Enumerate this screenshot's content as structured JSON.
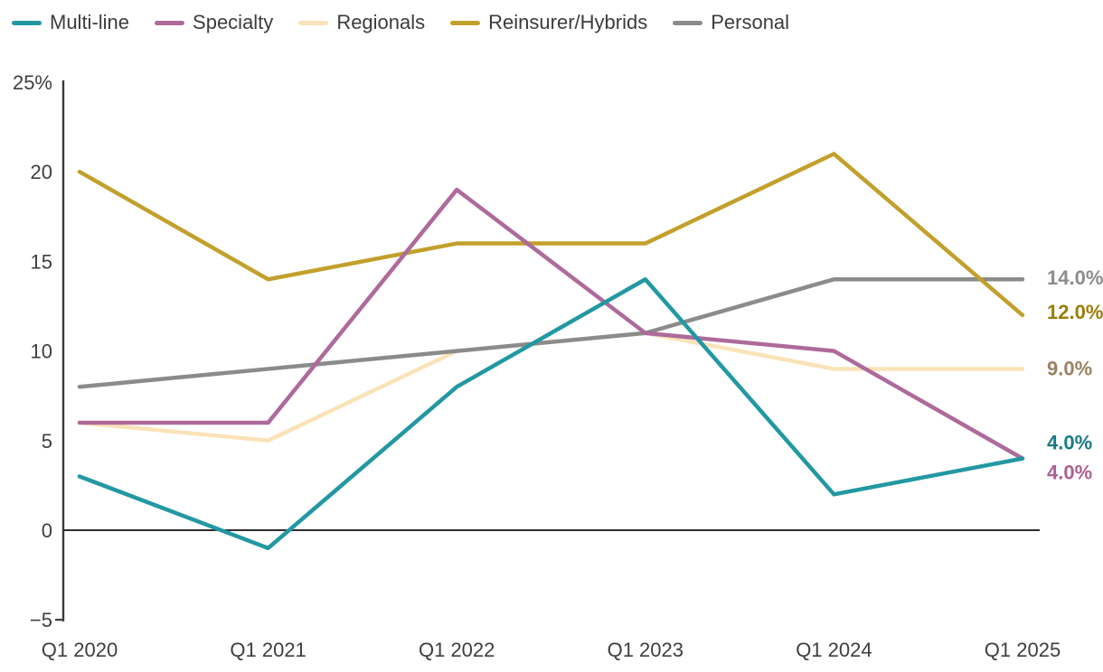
{
  "chart_data": {
    "type": "line",
    "x_categories": [
      "Q1 2020",
      "Q1 2021",
      "Q1 2022",
      "Q1 2023",
      "Q1 2024",
      "Q1 2025"
    ],
    "y_axis": {
      "unit": "%",
      "ylim": [
        -5,
        25
      ],
      "ticks": [
        {
          "value": 25,
          "label": "25%"
        },
        {
          "value": 20,
          "label": "20"
        },
        {
          "value": 15,
          "label": "15"
        },
        {
          "value": 10,
          "label": "10"
        },
        {
          "value": 5,
          "label": "5"
        },
        {
          "value": 0,
          "label": "0"
        },
        {
          "value": -5,
          "label": "−5"
        }
      ]
    },
    "grid": false,
    "legend_position": "top-left",
    "axis_color": "#3a3a3a",
    "zero_line": true,
    "series": [
      {
        "name": "Multi-line",
        "color": "#2298A2",
        "values": [
          3,
          -1,
          8,
          14,
          2,
          4
        ],
        "end_label": {
          "text": "4.0%",
          "color": "#177A87",
          "dy": -18
        }
      },
      {
        "name": "Specialty",
        "color": "#AE6A9B",
        "values": [
          6,
          6,
          19,
          11,
          10,
          4
        ],
        "end_label": {
          "text": "4.0%",
          "color": "#AC5F93",
          "dy": 15
        }
      },
      {
        "name": "Regionals",
        "color": "#FAE3B8",
        "values": [
          6,
          5,
          10,
          11,
          9,
          9
        ],
        "end_label": {
          "text": "9.0%",
          "color": "#9A8162",
          "dy": -1
        }
      },
      {
        "name": "Reinsurer/Hybrids",
        "color": "#C2A02C",
        "values": [
          20,
          14,
          16,
          16,
          21,
          12
        ],
        "end_label": {
          "text": "12.0%",
          "color": "#9A7D06",
          "dy": -4
        }
      },
      {
        "name": "Personal",
        "color": "#8B8B8B",
        "values": [
          8,
          9,
          10,
          11,
          14,
          14
        ],
        "end_label": {
          "text": "14.0%",
          "color": "#8C8C8C",
          "dy": -2
        }
      }
    ]
  }
}
